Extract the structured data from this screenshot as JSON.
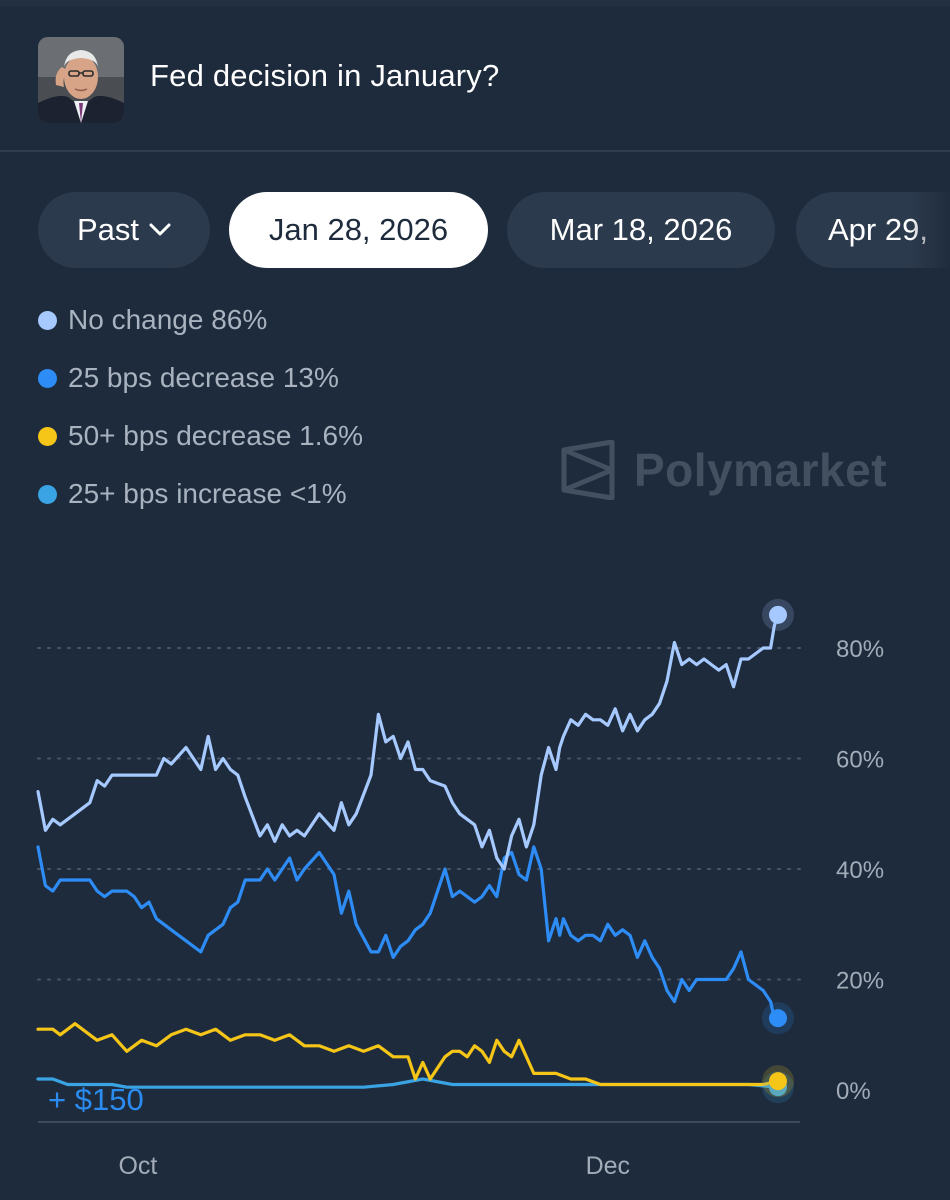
{
  "market": {
    "title": "Fed decision in January?",
    "avatar_icon": "person-photo-icon"
  },
  "tabs": [
    {
      "label": "Past",
      "icon": "chevron-down-icon"
    },
    {
      "label": "Jan 28, 2026",
      "active": true
    },
    {
      "label": "Mar 18, 2026"
    },
    {
      "label": "Apr 29,"
    }
  ],
  "legend": [
    {
      "label": "No change 86%",
      "color": "#a6c9ff"
    },
    {
      "label": "25 bps decrease 13%",
      "color": "#2d8cf5"
    },
    {
      "label": "50+ bps decrease 1.6%",
      "color": "#f5c518"
    },
    {
      "label": "25+ bps increase <1%",
      "color": "#3aa3e3"
    }
  ],
  "watermark": {
    "text": "Polymarket",
    "icon": "polymarket-logo-icon"
  },
  "volume": {
    "label": "+ $150"
  },
  "chart_data": {
    "type": "line",
    "title": "",
    "xlabel": "",
    "ylabel": "",
    "x_ticks": [
      "Oct",
      "Dec"
    ],
    "y_ticks": [
      "0%",
      "20%",
      "40%",
      "60%",
      "80%"
    ],
    "ylim": [
      0,
      90
    ],
    "grid": "horizontal dotted",
    "y_axis_position": "right",
    "x_range": [
      0,
      100
    ],
    "x_tick_positions": [
      13.5,
      77
    ],
    "series": [
      {
        "name": "No change",
        "color": "#a6c9ff",
        "x": [
          0,
          1,
          2,
          3,
          5,
          7,
          8,
          9,
          10,
          12,
          13,
          14,
          16,
          17,
          18,
          20,
          22,
          23,
          24,
          25,
          26,
          27,
          28,
          30,
          31,
          32,
          33,
          34,
          35,
          36,
          38,
          40,
          41,
          42,
          43,
          45,
          46,
          47,
          48,
          49,
          50,
          51,
          52,
          53,
          55,
          56,
          57,
          59,
          60,
          61,
          62,
          63,
          64,
          65,
          66,
          67,
          68,
          69,
          70,
          70.5,
          71,
          72,
          73,
          74,
          75,
          76,
          77,
          78,
          79,
          80,
          81,
          82,
          83,
          84,
          85,
          86,
          87,
          88,
          89,
          90,
          91,
          92,
          93,
          94,
          95,
          96,
          97,
          98,
          99,
          99.5,
          100
        ],
        "values": [
          54,
          47,
          49,
          48,
          50,
          52,
          56,
          55,
          57,
          57,
          57,
          57,
          57,
          60,
          59,
          62,
          58,
          64,
          58,
          60,
          58,
          57,
          53,
          46,
          48,
          45,
          48,
          46,
          47,
          46,
          50,
          47,
          52,
          48,
          50,
          57,
          68,
          63,
          64,
          60,
          63,
          58,
          58,
          56,
          55,
          52,
          50,
          48,
          44,
          47,
          42,
          40,
          46,
          49,
          44,
          48,
          57,
          62,
          58,
          62,
          64,
          67,
          66,
          68,
          67,
          67,
          66,
          69,
          65,
          68,
          65,
          67,
          68,
          70,
          74,
          81,
          77,
          78,
          77,
          78,
          77,
          76,
          77,
          73,
          78,
          78,
          79,
          80,
          80,
          84,
          86
        ]
      },
      {
        "name": "25 bps decrease",
        "color": "#2d8cf5",
        "x": [
          0,
          1,
          2,
          3,
          5,
          7,
          8,
          9,
          10,
          12,
          13,
          14,
          15,
          16,
          18,
          20,
          22,
          23,
          24,
          25,
          26,
          27,
          28,
          30,
          31,
          32,
          33,
          34,
          35,
          36,
          38,
          40,
          41,
          42,
          43,
          45,
          46,
          47,
          48,
          49,
          50,
          51,
          52,
          53,
          55,
          56,
          57,
          59,
          60,
          61,
          62,
          63,
          64,
          65,
          66,
          67,
          68,
          69,
          70,
          70.5,
          71,
          72,
          73,
          74,
          75,
          76,
          77,
          78,
          79,
          80,
          81,
          82,
          83,
          84,
          85,
          86,
          87,
          88,
          89,
          90,
          91,
          92,
          93,
          94,
          95,
          96,
          97,
          98,
          99,
          99.5,
          100
        ],
        "values": [
          44,
          37,
          36,
          38,
          38,
          38,
          36,
          35,
          36,
          36,
          35,
          33,
          34,
          31,
          29,
          27,
          25,
          28,
          29,
          30,
          33,
          34,
          38,
          38,
          40,
          38,
          40,
          42,
          38,
          40,
          43,
          39,
          32,
          36,
          30,
          25,
          25,
          28,
          24,
          26,
          27,
          29,
          30,
          32,
          40,
          35,
          36,
          34,
          35,
          37,
          35,
          42,
          43,
          39,
          38,
          44,
          40,
          27,
          31,
          28,
          31,
          28,
          27,
          28,
          28,
          27,
          30,
          28,
          29,
          28,
          24,
          27,
          24,
          22,
          18,
          16,
          20,
          18,
          20,
          20,
          20,
          20,
          20,
          22,
          25,
          20,
          19,
          18,
          16,
          13,
          13
        ]
      },
      {
        "name": "50+ bps decrease",
        "color": "#f5c518",
        "x": [
          0,
          2,
          3,
          5,
          7,
          8,
          10,
          12,
          14,
          16,
          18,
          20,
          22,
          24,
          26,
          28,
          30,
          32,
          34,
          36,
          38,
          40,
          42,
          44,
          46,
          48,
          50,
          51,
          52,
          53,
          55,
          56,
          57,
          58,
          59,
          60,
          61,
          62,
          63,
          64,
          65,
          66,
          67,
          68,
          70,
          72,
          74,
          76,
          78,
          80,
          82,
          84,
          86,
          88,
          90,
          92,
          94,
          96,
          98,
          100
        ],
        "values": [
          11,
          11,
          10,
          12,
          10,
          9,
          10,
          7,
          9,
          8,
          10,
          11,
          10,
          11,
          9,
          10,
          10,
          9,
          10,
          8,
          8,
          7,
          8,
          7,
          8,
          6,
          6,
          2,
          5,
          2,
          6,
          7,
          7,
          6,
          8,
          7,
          5,
          9,
          7,
          6,
          9,
          6,
          3,
          3,
          3,
          2,
          2,
          1,
          1,
          1,
          1,
          1,
          1,
          1,
          1,
          1,
          1,
          1,
          1,
          1.6
        ]
      },
      {
        "name": "25+ bps increase",
        "color": "#3aa3e3",
        "x": [
          0,
          2,
          4,
          6,
          8,
          10,
          12,
          14,
          16,
          20,
          24,
          28,
          32,
          36,
          40,
          44,
          48,
          52,
          56,
          60,
          64,
          68,
          72,
          76,
          80,
          84,
          88,
          92,
          96,
          100
        ],
        "values": [
          2,
          2,
          1,
          1,
          1,
          1,
          0.5,
          0.5,
          0.5,
          0.5,
          0.5,
          0.5,
          0.5,
          0.5,
          0.5,
          0.5,
          1,
          2,
          1,
          1,
          1,
          1,
          1,
          1,
          1,
          1,
          1,
          1,
          1,
          0.5
        ]
      }
    ]
  }
}
